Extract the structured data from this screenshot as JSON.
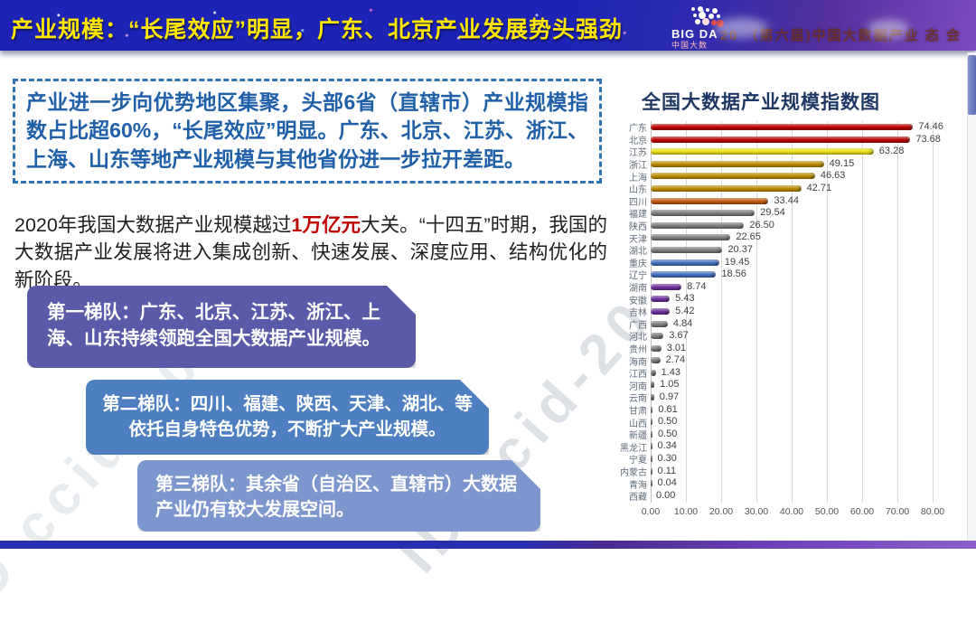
{
  "header": {
    "title": "产业规模：“长尾效应”明显，广东、北京产业发展势头强劲",
    "logo": {
      "line1": "BIG DA",
      "line2": "中国大数"
    },
    "event_text": "20 （第六届)中国大数据产业 态 会",
    "title_color": "#FFE600",
    "bg_color": "#1C23B5"
  },
  "left": {
    "highlight_box": "产业进一步向优势地区集聚，头部6省（直辖市）产业规模指数占比超60%，“长尾效应”明显。广东、北京、江苏、浙江、上海、山东等地产业规模与其他省份进一步拉开差距。",
    "paragraph": {
      "pre": "2020年我国大数据产业规模越过",
      "em": "1万亿元",
      "post": "大关。“十四五”时期，我国的大数据产业发展将进入集成创新、快速发展、深度应用、结构优化的新阶段。"
    },
    "tiers": [
      {
        "label": "第一梯队：广东、北京、江苏、浙江、上海、山东持续领跑全国大数据产业规模。",
        "color": "#5A5BA8"
      },
      {
        "label": "第二梯队：四川、福建、陕西、天津、湖北、等依托自身特色优势，不断扩大产业规模。",
        "color": "#4E7FC0"
      },
      {
        "label": "第三梯队：其余省（自治区、直辖市）大数据产业仍有较大发展空间。",
        "color": "#7D97CE"
      }
    ]
  },
  "watermarks": {
    "main": "ID ccid-20",
    "secondary": "ID ccid-20"
  },
  "chart_data": {
    "type": "bar",
    "orientation": "horizontal",
    "title": "全国大数据产业规模指数图",
    "xlabel": "",
    "ylabel": "",
    "xlim": [
      0,
      80
    ],
    "grid": true,
    "categories": [
      "广东",
      "北京",
      "江苏",
      "浙江",
      "上海",
      "山东",
      "四川",
      "福建",
      "陕西",
      "天津",
      "湖北",
      "重庆",
      "辽宁",
      "湖南",
      "安徽",
      "吉林",
      "广西",
      "河北",
      "贵州",
      "海南",
      "江西",
      "河南",
      "云南",
      "甘肃",
      "山西",
      "新疆",
      "黑龙江",
      "宁夏",
      "内蒙古",
      "青海",
      "西藏"
    ],
    "values": [
      74.46,
      73.68,
      63.28,
      49.15,
      46.63,
      42.71,
      33.44,
      29.54,
      26.5,
      22.65,
      20.37,
      19.45,
      18.56,
      8.74,
      5.43,
      5.42,
      4.84,
      3.67,
      3.01,
      2.74,
      1.43,
      1.05,
      0.97,
      0.61,
      0.5,
      0.5,
      0.34,
      0.3,
      0.11,
      0.04,
      0.0
    ],
    "value_labels": [
      "74.46",
      "73.68",
      "63.28",
      "49.15",
      "46.63",
      "42.71",
      "33.44",
      "29.54",
      "26.50",
      "22.65",
      "20.37",
      "19.45",
      "18.56",
      "8.74",
      "5.43",
      "5.42",
      "4.84",
      "3.67",
      "3.01",
      "2.74",
      "1.43",
      "1.05",
      "0.97",
      "0.61",
      "0.50",
      "0.50",
      "0.34",
      "0.30",
      "0.11",
      "0.04",
      "0.00"
    ],
    "colors": [
      "#C00000",
      "#C00000",
      "#EFE116",
      "#BF8F00",
      "#BF8F00",
      "#BF8F00",
      "#C55A11",
      "#7F7F7F",
      "#7F7F7F",
      "#7F7F7F",
      "#7F7F7F",
      "#4472C4",
      "#4472C4",
      "#7030A0",
      "#7030A0",
      "#7030A0",
      "#7F7F7F",
      "#7F7F7F",
      "#7F7F7F",
      "#7F7F7F",
      "#7F7F7F",
      "#7F7F7F",
      "#7F7F7F",
      "#7F7F7F",
      "#7F7F7F",
      "#7F7F7F",
      "#7F7F7F",
      "#7F7F7F",
      "#7F7F7F",
      "#7F7F7F",
      "#7F7F7F"
    ],
    "xticks": [
      "0.00",
      "10.00",
      "20.00",
      "30.00",
      "40.00",
      "50.00",
      "60.00",
      "70.00",
      "80.00"
    ]
  }
}
